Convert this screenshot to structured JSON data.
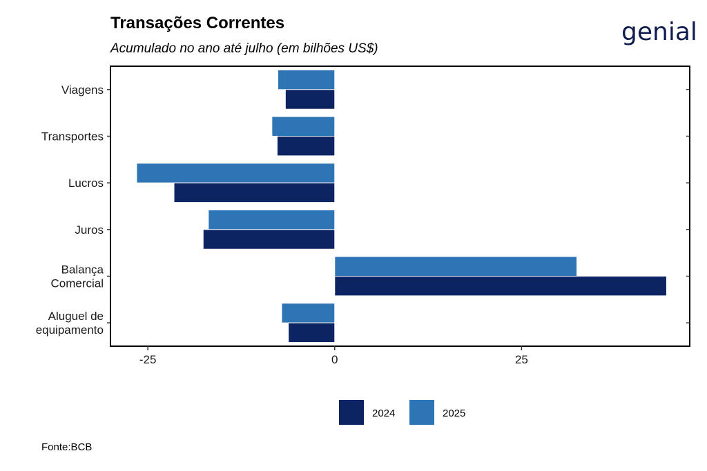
{
  "header": {
    "title": "Transações Correntes",
    "subtitle": "Acumulado no ano até julho (em bilhões US$)"
  },
  "logo": {
    "text": "genial"
  },
  "footer": {
    "source": "Fonte:BCB"
  },
  "chart_data": {
    "type": "bar",
    "orientation": "horizontal",
    "categories": [
      "Viagens",
      "Transportes",
      "Lucros",
      "Juros",
      "Balança Comercial",
      "Aluguel de equipamento"
    ],
    "category_labels": [
      [
        "Viagens"
      ],
      [
        "Transportes"
      ],
      [
        "Lucros"
      ],
      [
        "Juros"
      ],
      [
        "Balança",
        "Comercial"
      ],
      [
        "Aluguel de",
        "equipamento"
      ]
    ],
    "series": [
      {
        "name": "2024",
        "color": "#0c2461",
        "values": [
          -6.6,
          -7.7,
          -21.5,
          -17.6,
          44.4,
          -6.2
        ]
      },
      {
        "name": "2025",
        "color": "#2e75b6",
        "values": [
          -7.6,
          -8.4,
          -26.5,
          -16.9,
          32.4,
          -7.1
        ]
      }
    ],
    "xlim": [
      -30,
      47.5
    ],
    "xticks": [
      -25,
      0,
      25
    ],
    "tick_labels": [
      "-25",
      "0",
      "25"
    ],
    "xlabel": "",
    "ylabel": "",
    "grid": false,
    "legend": "bottom"
  }
}
